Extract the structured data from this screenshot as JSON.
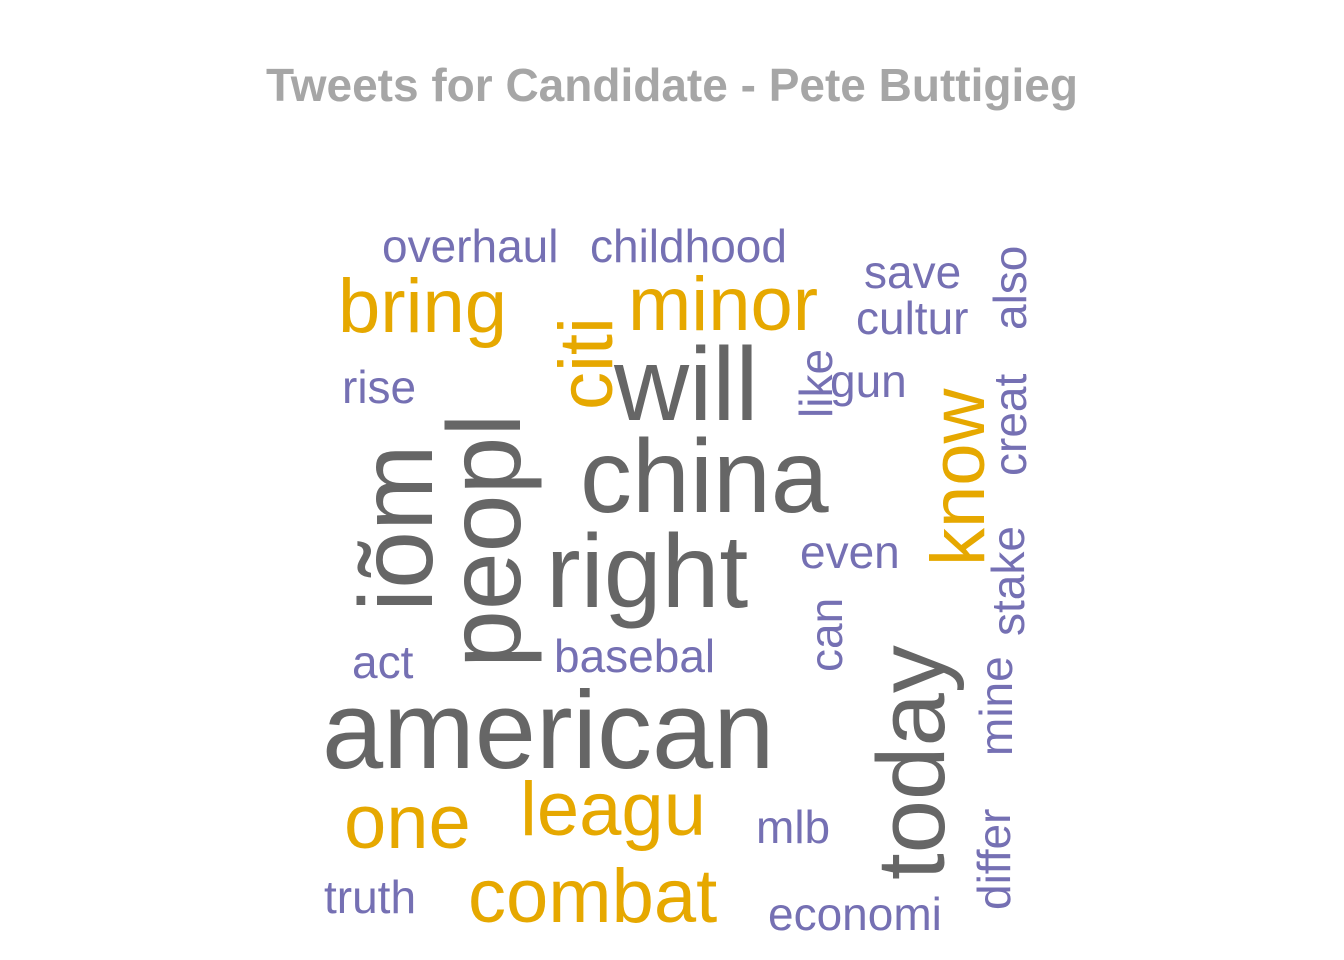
{
  "chart_data": {
    "type": "wordcloud",
    "title": "Tweets for Candidate - Pete Buttigieg",
    "colors": {
      "frequent": "#666666",
      "medium": "#e6a800",
      "rare": "#7570b3",
      "title": "#a6a6a6"
    },
    "words": [
      {
        "text": "american",
        "rank": "frequent",
        "rotated": false
      },
      {
        "text": "china",
        "rank": "frequent",
        "rotated": false
      },
      {
        "text": "right",
        "rank": "frequent",
        "rotated": false
      },
      {
        "text": "will",
        "rank": "frequent",
        "rotated": false
      },
      {
        "text": "peopl",
        "rank": "frequent",
        "rotated": true
      },
      {
        "text": "iõm",
        "rank": "frequent",
        "rotated": true
      },
      {
        "text": "today",
        "rank": "frequent",
        "rotated": true
      },
      {
        "text": "bring",
        "rank": "medium",
        "rotated": false
      },
      {
        "text": "minor",
        "rank": "medium",
        "rotated": false
      },
      {
        "text": "citi",
        "rank": "medium",
        "rotated": true
      },
      {
        "text": "know",
        "rank": "medium",
        "rotated": true
      },
      {
        "text": "one",
        "rank": "medium",
        "rotated": false
      },
      {
        "text": "leagu",
        "rank": "medium",
        "rotated": false
      },
      {
        "text": "combat",
        "rank": "medium",
        "rotated": false
      },
      {
        "text": "overhaul",
        "rank": "rare",
        "rotated": false
      },
      {
        "text": "childhood",
        "rank": "rare",
        "rotated": false
      },
      {
        "text": "save",
        "rank": "rare",
        "rotated": false
      },
      {
        "text": "cultur",
        "rank": "rare",
        "rotated": false
      },
      {
        "text": "also",
        "rank": "rare",
        "rotated": true
      },
      {
        "text": "rise",
        "rank": "rare",
        "rotated": false
      },
      {
        "text": "like",
        "rank": "rare",
        "rotated": true
      },
      {
        "text": "gun",
        "rank": "rare",
        "rotated": false
      },
      {
        "text": "creat",
        "rank": "rare",
        "rotated": true
      },
      {
        "text": "even",
        "rank": "rare",
        "rotated": false
      },
      {
        "text": "stake",
        "rank": "rare",
        "rotated": true
      },
      {
        "text": "act",
        "rank": "rare",
        "rotated": false
      },
      {
        "text": "basebal",
        "rank": "rare",
        "rotated": false
      },
      {
        "text": "can",
        "rank": "rare",
        "rotated": true
      },
      {
        "text": "mine",
        "rank": "rare",
        "rotated": true
      },
      {
        "text": "mlb",
        "rank": "rare",
        "rotated": false
      },
      {
        "text": "differ",
        "rank": "rare",
        "rotated": true
      },
      {
        "text": "truth",
        "rank": "rare",
        "rotated": false
      },
      {
        "text": "economi",
        "rank": "rare",
        "rotated": false
      }
    ]
  }
}
